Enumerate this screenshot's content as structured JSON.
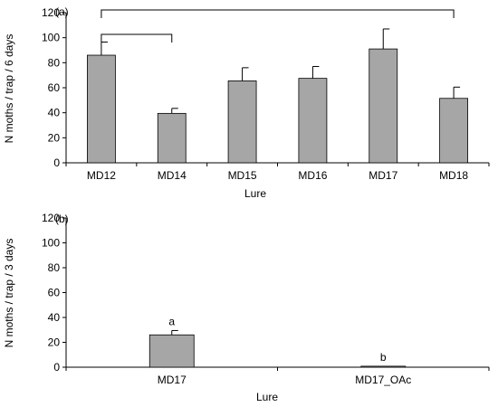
{
  "chart_data": [
    {
      "type": "bar",
      "panel_label": "(a)",
      "categories": [
        "MD12",
        "MD14",
        "MD15",
        "MD16",
        "MD17",
        "MD18"
      ],
      "values": [
        86,
        39.5,
        65.5,
        67.5,
        91,
        51.5
      ],
      "errors": [
        10.5,
        4,
        10.5,
        9.5,
        16,
        9
      ],
      "xlabel": "Lure",
      "ylabel": "N moths / trap / 6 days",
      "ylim": [
        0,
        120
      ],
      "yticks": [
        "0",
        "20",
        "40",
        "60",
        "80",
        "100",
        "120"
      ],
      "brackets": [
        {
          "from": "MD12",
          "to": "MD14"
        },
        {
          "from": "MD12",
          "to": "MD18"
        }
      ],
      "grid": false
    },
    {
      "type": "bar",
      "panel_label": "(b)",
      "categories": [
        "MD17",
        "MD17_OAc"
      ],
      "values": [
        26,
        0.8
      ],
      "errors": [
        3.5,
        0
      ],
      "letters": [
        "a",
        "b"
      ],
      "xlabel": "Lure",
      "ylabel": "N moths / trap / 3 days",
      "ylim": [
        0,
        120
      ],
      "yticks": [
        "0",
        "20",
        "40",
        "60",
        "80",
        "100",
        "120"
      ],
      "grid": false
    }
  ]
}
